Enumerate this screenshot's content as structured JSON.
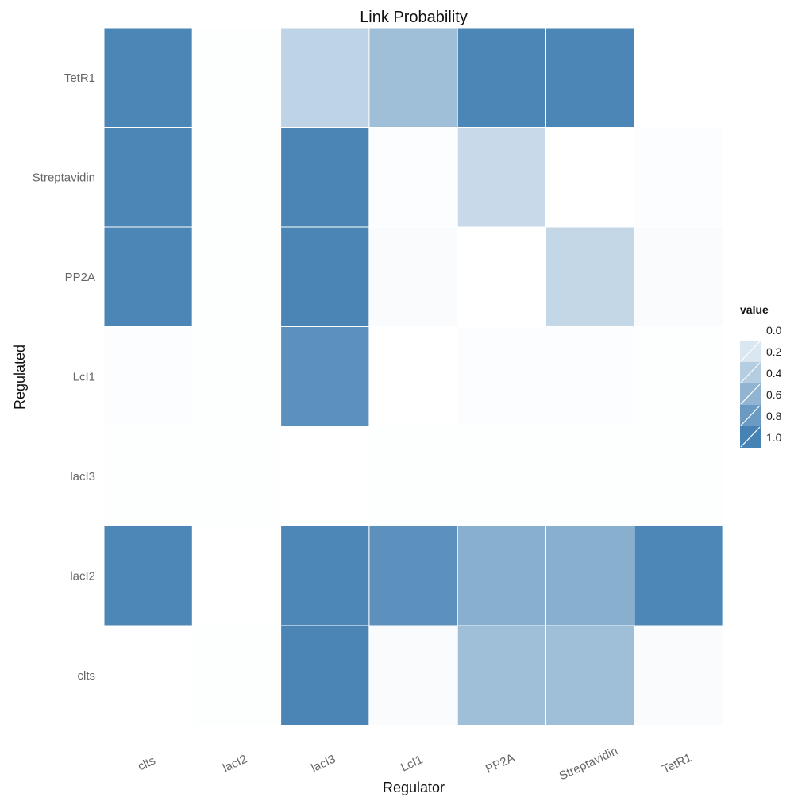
{
  "chart_data": {
    "type": "heatmap",
    "title": "Link Probability",
    "xlabel": "Regulator",
    "ylabel": "Regulated",
    "x_categories": [
      "clts",
      "lacI2",
      "lacI3",
      "LcI1",
      "PP2A",
      "Streptavidin",
      "TetR1"
    ],
    "y_categories": [
      "TetR1",
      "Streptavidin",
      "PP2A",
      "LcI1",
      "lacI3",
      "lacI2",
      "clts"
    ],
    "values": [
      [
        0.97,
        0.01,
        0.35,
        0.52,
        0.97,
        0.97,
        null
      ],
      [
        0.97,
        0.01,
        0.98,
        0.02,
        0.3,
        null,
        0.02
      ],
      [
        0.97,
        0.01,
        0.98,
        0.03,
        null,
        0.32,
        0.03
      ],
      [
        0.02,
        0.01,
        0.88,
        null,
        0.02,
        0.02,
        0.01
      ],
      [
        0.01,
        0.01,
        null,
        0.01,
        0.01,
        0.01,
        0.01
      ],
      [
        0.96,
        null,
        0.96,
        0.88,
        0.64,
        0.64,
        0.96
      ],
      [
        null,
        0.01,
        0.98,
        0.03,
        0.52,
        0.52,
        0.03
      ]
    ],
    "value_range": [
      0,
      1
    ],
    "color_low": "#ffffff",
    "color_high": "#4682b4",
    "legend": {
      "title": "value",
      "position": "right",
      "ticks": [
        "0.0",
        "0.2",
        "0.4",
        "0.6",
        "0.8",
        "1.0"
      ]
    },
    "grid": false
  }
}
